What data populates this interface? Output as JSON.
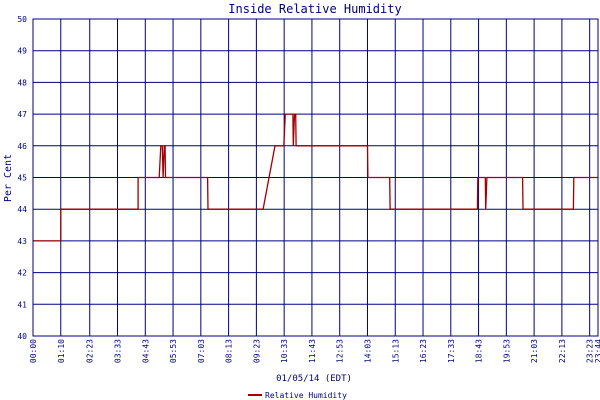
{
  "chart_data": {
    "type": "line",
    "title": "Inside Relative Humidity",
    "xlabel": "01/05/14 (EDT)",
    "ylabel": "Per Cent",
    "ylim": [
      40,
      50
    ],
    "y_ticks": [
      "40",
      "41",
      "42",
      "43",
      "44",
      "45",
      "46",
      "47",
      "48",
      "49",
      "50"
    ],
    "x_range": [
      "00:00",
      "23:44"
    ],
    "x_ticks": [
      "00:00",
      "01:10",
      "02:23",
      "03:33",
      "04:43",
      "05:53",
      "07:03",
      "08:13",
      "09:23",
      "10:33",
      "11:43",
      "12:53",
      "14:03",
      "15:13",
      "16:23",
      "17:33",
      "18:43",
      "19:53",
      "21:03",
      "22:13",
      "23:23",
      "23:44"
    ],
    "grid": true,
    "legend_position": "bottom-center",
    "line_color": "#a00000",
    "grid_color": "#000080",
    "series": [
      {
        "name": "Relative Humidity",
        "points": [
          [
            "00:00",
            43
          ],
          [
            "01:10",
            43
          ],
          [
            "01:10",
            44
          ],
          [
            "04:25",
            44
          ],
          [
            "04:25",
            45
          ],
          [
            "05:18",
            45
          ],
          [
            "05:22",
            46
          ],
          [
            "05:26",
            46
          ],
          [
            "05:28",
            45
          ],
          [
            "05:31",
            46
          ],
          [
            "05:33",
            46
          ],
          [
            "05:34",
            45
          ],
          [
            "07:20",
            45
          ],
          [
            "07:21",
            44
          ],
          [
            "09:40",
            44
          ],
          [
            "10:10",
            46
          ],
          [
            "10:32",
            46
          ],
          [
            "10:36",
            47
          ],
          [
            "10:55",
            47
          ],
          [
            "10:56",
            46
          ],
          [
            "10:59",
            47
          ],
          [
            "11:02",
            47
          ],
          [
            "11:03",
            46
          ],
          [
            "14:03",
            46
          ],
          [
            "14:04",
            45
          ],
          [
            "14:59",
            45
          ],
          [
            "15:00",
            44
          ],
          [
            "18:40",
            44
          ],
          [
            "18:41",
            45
          ],
          [
            "19:00",
            45
          ],
          [
            "19:01",
            44
          ],
          [
            "19:04",
            45
          ],
          [
            "20:34",
            45
          ],
          [
            "20:35",
            44
          ],
          [
            "22:42",
            44
          ],
          [
            "22:43",
            45
          ],
          [
            "23:44",
            45
          ]
        ]
      }
    ]
  }
}
